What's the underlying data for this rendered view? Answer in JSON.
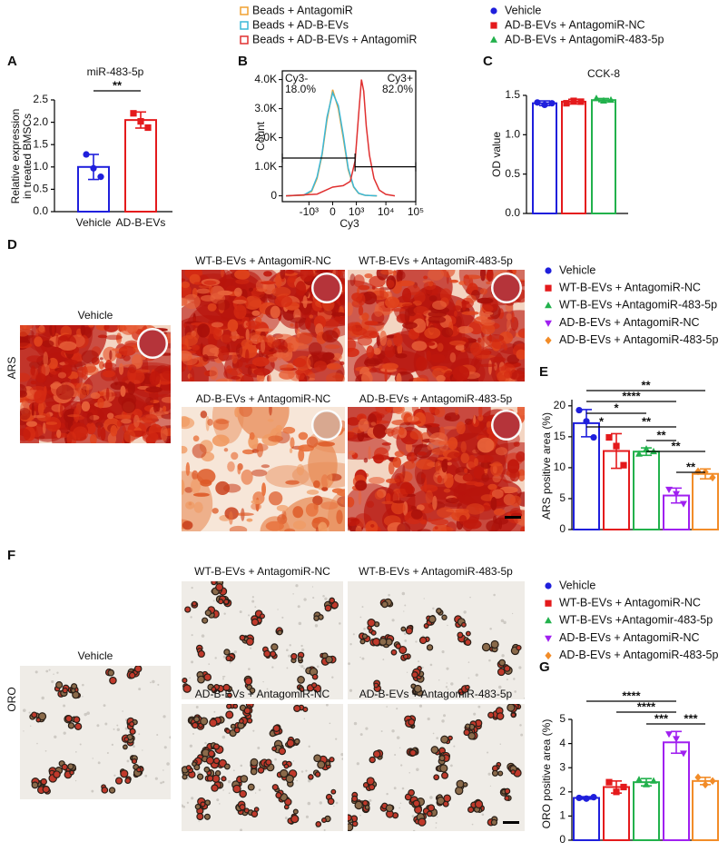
{
  "chart_data": [
    {
      "type": "bar",
      "panel": "A",
      "title": "miR-483-5p",
      "y_label": [
        "Relative expression",
        "in treated BMSCs"
      ],
      "categories": [
        "Vehicle",
        "AD-B-EVs"
      ],
      "values": [
        1.0,
        2.05
      ],
      "errors": [
        0.28,
        0.18
      ],
      "points": [
        [
          1.28,
          0.97,
          0.78
        ],
        [
          2.2,
          2.02,
          1.88
        ]
      ],
      "colors": [
        "#1f1fdc",
        "#e41a1c"
      ],
      "markers": [
        "circle",
        "square"
      ],
      "ylim": [
        0,
        2.5
      ],
      "yticks": [
        {
          "value": 0,
          "label": "0.0"
        },
        0.5,
        {
          "value": 1,
          "label": "1.0"
        },
        1.5,
        {
          "value": 2,
          "label": "2.0"
        },
        2.5
      ],
      "significance": [
        {
          "from": 0,
          "to": 1,
          "label": "**"
        }
      ]
    },
    {
      "type": "line",
      "panel": "B",
      "x_label": "Cy3",
      "y_label": "Count",
      "xscale": "biexponential",
      "xlim": [
        -8000,
        100000
      ],
      "xticks": [
        {
          "value": -1000,
          "label": "-10³"
        },
        0,
        {
          "value": 1000,
          "label": "10³"
        },
        {
          "value": 10000,
          "label": "10⁴"
        },
        {
          "value": 100000,
          "label": "10⁵"
        }
      ],
      "ylim": [
        -200,
        4300
      ],
      "yticks": [
        0,
        {
          "value": 1000,
          "label": "1.0K"
        },
        {
          "value": 2000,
          "label": "2.0K"
        },
        {
          "value": 3000,
          "label": "3.0K"
        },
        {
          "value": 4000,
          "label": "4.0K"
        }
      ],
      "series": [
        {
          "name": "Beads + AntagomiR",
          "color": "#f0a030",
          "x": [
            -6000,
            -1500,
            -800,
            -500,
            -300,
            -150,
            0,
            150,
            300,
            500,
            800,
            1200,
            2000,
            5000
          ],
          "values": [
            0,
            20,
            150,
            600,
            1400,
            2600,
            3650,
            3000,
            2000,
            900,
            300,
            80,
            20,
            0
          ]
        },
        {
          "name": "Beads + AD-B-EVs",
          "color": "#3ab8d8",
          "x": [
            -6000,
            -1500,
            -800,
            -500,
            -300,
            -150,
            0,
            150,
            300,
            500,
            800,
            1200,
            2000,
            5000
          ],
          "values": [
            0,
            30,
            180,
            650,
            1450,
            2700,
            3550,
            3100,
            2100,
            950,
            320,
            90,
            20,
            0
          ]
        },
        {
          "name": "Beads + AD-B-EVs + AntagomiR",
          "color": "#e03030",
          "x": [
            -6000,
            -500,
            0,
            300,
            600,
            900,
            1200,
            1500,
            1800,
            2200,
            2800,
            4000,
            6000,
            10000,
            20000
          ],
          "values": [
            0,
            60,
            300,
            350,
            500,
            1200,
            2800,
            4000,
            3600,
            2400,
            1400,
            600,
            200,
            50,
            0
          ]
        }
      ],
      "gates": [
        {
          "name": "Cy3-",
          "percent": "18.0%",
          "x": [
            -8000,
            900
          ],
          "y": 1300
        },
        {
          "name": "Cy3+",
          "percent": "82.0%",
          "x": [
            900,
            100000
          ],
          "y": 1000
        }
      ]
    },
    {
      "type": "bar",
      "panel": "C",
      "title": "CCK-8",
      "y_label": "OD value",
      "ylim": [
        0,
        1.5
      ],
      "yticks": [
        {
          "value": 0,
          "label": "0.0"
        },
        0.5,
        {
          "value": 1,
          "label": "1.0"
        },
        1.5
      ],
      "series": [
        {
          "name": "Vehicle",
          "color": "#1f1fdc",
          "marker": "circle",
          "value": 1.4,
          "error": 0.03,
          "points": [
            1.41,
            1.38,
            1.4
          ]
        },
        {
          "name": "AD-B-EVs + AntagomiR-NC",
          "color": "#e41a1c",
          "marker": "square",
          "value": 1.42,
          "error": 0.03,
          "points": [
            1.4,
            1.43,
            1.42
          ]
        },
        {
          "name": "AD-B-EVs + AntagomiR-483-5p",
          "color": "#22b14c",
          "marker": "triangle",
          "value": 1.44,
          "error": 0.02,
          "points": [
            1.46,
            1.43,
            1.44
          ]
        }
      ],
      "significance": []
    },
    {
      "type": "bar",
      "panel": "E",
      "y_label": "ARS positive area (%)",
      "ylim": [
        0,
        21
      ],
      "yticks": [
        0,
        5,
        10,
        15,
        20
      ],
      "series": [
        {
          "name": "Vehicle",
          "color": "#1f1fdc",
          "marker": "circle",
          "value": 17.2,
          "error": 2.2,
          "points": [
            19.3,
            17.5,
            14.9
          ]
        },
        {
          "name": "WT-B-EVs + AntagomiR-NC",
          "color": "#e41a1c",
          "marker": "square",
          "value": 12.7,
          "error": 2.8,
          "points": [
            14.9,
            13.5,
            10.4
          ]
        },
        {
          "name": "WT-B-EVs +AntagomiR-483-5p",
          "color": "#22b14c",
          "marker": "triangle",
          "value": 12.6,
          "error": 0.6,
          "points": [
            12.2,
            13.0,
            12.6
          ]
        },
        {
          "name": "AD-B-EVs + AntagomiR-NC",
          "color": "#a020f0",
          "marker": "triangle-down",
          "value": 5.5,
          "error": 1.2,
          "points": [
            6.5,
            5.8,
            4.2
          ]
        },
        {
          "name": "AD-B-EVs + AntagomiR-483-5p",
          "color": "#f28c28",
          "marker": "diamond",
          "value": 9.0,
          "error": 0.8,
          "points": [
            9.4,
            9.3,
            8.4
          ]
        }
      ],
      "significance": [
        {
          "from": 0,
          "to": 4,
          "label": "**"
        },
        {
          "from": 0,
          "to": 3,
          "label": "****"
        },
        {
          "from": 0,
          "to": 2,
          "label": "*"
        },
        {
          "from": 0,
          "to": 1,
          "label": "*"
        },
        {
          "from": 1,
          "to": 3,
          "label": "**"
        },
        {
          "from": 2,
          "to": 3,
          "label": "**"
        },
        {
          "from": 2,
          "to": 4,
          "label": "**"
        },
        {
          "from": 3,
          "to": 4,
          "label": "**"
        }
      ]
    },
    {
      "type": "bar",
      "panel": "G",
      "y_label": "ORO positive area (%)",
      "ylim": [
        0,
        5
      ],
      "yticks": [
        0,
        1,
        2,
        3,
        4,
        5
      ],
      "series": [
        {
          "name": "Vehicle",
          "color": "#1f1fdc",
          "marker": "circle",
          "value": 1.75,
          "error": 0.05,
          "points": [
            1.75,
            1.72,
            1.78
          ]
        },
        {
          "name": "WT-B-EVs + AntagomiR-NC",
          "color": "#e41a1c",
          "marker": "square",
          "value": 2.2,
          "error": 0.25,
          "points": [
            2.4,
            2.0,
            2.2
          ]
        },
        {
          "name": "WT-B-EVs +Antagomir-483-5p",
          "color": "#22b14c",
          "marker": "triangle",
          "value": 2.4,
          "error": 0.15,
          "points": [
            2.5,
            2.3,
            2.45
          ]
        },
        {
          "name": "AD-B-EVs + AntagomiR-NC",
          "color": "#a020f0",
          "marker": "triangle-down",
          "value": 4.05,
          "error": 0.45,
          "points": [
            4.4,
            4.2,
            3.6
          ]
        },
        {
          "name": "AD-B-EVs + AntagomiR-483-5p",
          "color": "#f28c28",
          "marker": "diamond",
          "value": 2.45,
          "error": 0.15,
          "points": [
            2.6,
            2.3,
            2.45
          ]
        }
      ],
      "significance": [
        {
          "from": 0,
          "to": 3,
          "label": "****"
        },
        {
          "from": 1,
          "to": 3,
          "label": "****"
        },
        {
          "from": 2,
          "to": 3,
          "label": "***"
        },
        {
          "from": 3,
          "to": 4,
          "label": "***"
        }
      ]
    }
  ],
  "image_panels": [
    {
      "panel": "D",
      "row_label": "ARS",
      "images": [
        {
          "caption": "Vehicle"
        },
        {
          "caption": "WT-B-EVs + AntagomiR-NC"
        },
        {
          "caption": "WT-B-EVs + AntagomiR-483-5p"
        },
        {
          "caption": "AD-B-EVs + AntagomiR-NC"
        },
        {
          "caption": "AD-B-EVs + AntagomiR-483-5p"
        }
      ]
    },
    {
      "panel": "F",
      "row_label": "ORO",
      "images": [
        {
          "caption": "Vehicle"
        },
        {
          "caption": "WT-B-EVs + AntagomiR-NC"
        },
        {
          "caption": "WT-B-EVs + AntagomiR-483-5p"
        },
        {
          "caption": "AD-B-EVs + AntagomiR-NC"
        },
        {
          "caption": "AD-B-EVs + AntagomiR-483-5p"
        }
      ]
    }
  ]
}
